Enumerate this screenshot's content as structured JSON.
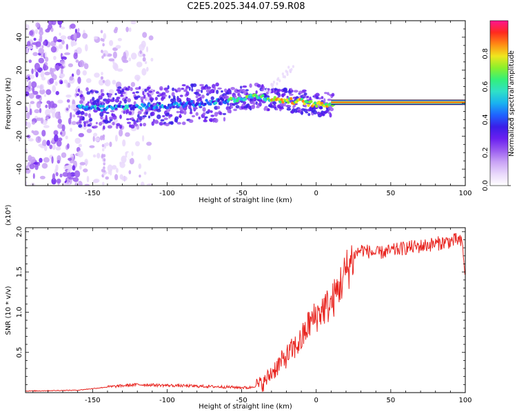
{
  "title": "C2E5.2025.344.07.59.R08",
  "colors": {
    "snr_line": "#e8231e",
    "colormap": [
      "#ffffff",
      "#e9d8fb",
      "#c9a3f5",
      "#9a5cf0",
      "#6a1ff0",
      "#3a1ee8",
      "#1e64ff",
      "#19b2f0",
      "#2fe0c8",
      "#33f07a",
      "#8af02c",
      "#f0e61e",
      "#ff8a14",
      "#ff2a1e",
      "#ff1490"
    ]
  },
  "chart_data": [
    {
      "type": "heatmap",
      "title": "C2E5.2025.344.07.59.R08",
      "xlabel": "Height of straight line (km)",
      "ylabel": "Frequency (Hz)",
      "xlim": [
        -195,
        100
      ],
      "ylim": [
        -50,
        50
      ],
      "xticks": [
        -150,
        -100,
        -50,
        0,
        50,
        100
      ],
      "yticks": [
        -40,
        -20,
        0,
        20,
        40
      ],
      "colorbar": {
        "label": "Normalized spectral amplitude",
        "range": [
          0,
          1
        ],
        "ticks": [
          "0.0",
          "0.2",
          "0.4",
          "0.6",
          "0.8"
        ]
      },
      "ridge_frequency_hz": {
        "x": [
          -160,
          -140,
          -120,
          -100,
          -80,
          -60,
          -50,
          -40,
          -30,
          -20,
          -10,
          0,
          10,
          20,
          100
        ],
        "y": [
          -3,
          -3,
          -2,
          -1.5,
          0,
          1.5,
          3,
          4.5,
          2.5,
          1.5,
          1,
          -1,
          -0.5,
          0.5,
          0.5
        ]
      }
    },
    {
      "type": "line",
      "xlabel": "Height of straight line (km)",
      "ylabel": "SNR (10 * v/v)",
      "y_multiplier": "(x10⁴)",
      "xlim": [
        -195,
        100
      ],
      "ylim": [
        0,
        2.05
      ],
      "xticks": [
        -150,
        -100,
        -50,
        0,
        50,
        100
      ],
      "yticks": [
        "0.5",
        "1.0",
        "1.5",
        "2.0"
      ],
      "series": [
        {
          "x": [
            -195,
            -160,
            -140,
            -120,
            -100,
            -80,
            -60,
            -45,
            -35,
            -30,
            -25,
            -20,
            -15,
            -10,
            -5,
            0,
            5,
            10,
            15,
            20,
            25,
            30,
            40,
            50,
            60,
            70,
            80,
            90,
            95,
            98,
            100
          ],
          "y": [
            0.02,
            0.03,
            0.07,
            0.1,
            0.09,
            0.08,
            0.07,
            0.06,
            0.12,
            0.25,
            0.35,
            0.45,
            0.55,
            0.65,
            0.85,
            0.95,
            1.05,
            1.1,
            1.3,
            1.5,
            1.7,
            1.78,
            1.73,
            1.76,
            1.8,
            1.82,
            1.85,
            1.88,
            1.9,
            1.85,
            1.45
          ]
        }
      ]
    }
  ]
}
